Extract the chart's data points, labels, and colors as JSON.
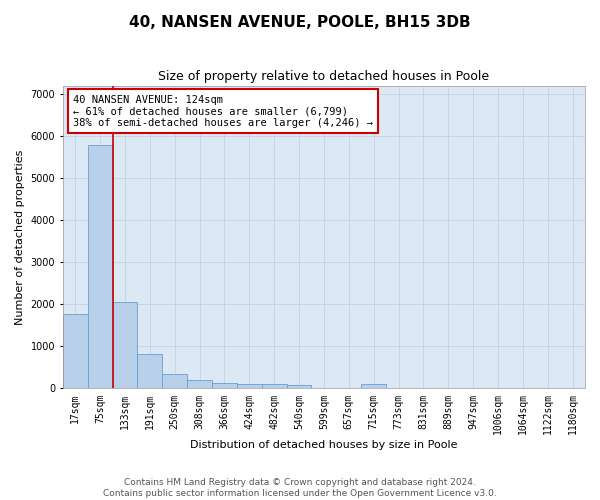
{
  "title": "40, NANSEN AVENUE, POOLE, BH15 3DB",
  "subtitle": "Size of property relative to detached houses in Poole",
  "xlabel": "Distribution of detached houses by size in Poole",
  "ylabel": "Number of detached properties",
  "bin_labels": [
    "17sqm",
    "75sqm",
    "133sqm",
    "191sqm",
    "250sqm",
    "308sqm",
    "366sqm",
    "424sqm",
    "482sqm",
    "540sqm",
    "599sqm",
    "657sqm",
    "715sqm",
    "773sqm",
    "831sqm",
    "889sqm",
    "947sqm",
    "1006sqm",
    "1064sqm",
    "1122sqm",
    "1180sqm"
  ],
  "bar_heights": [
    1780,
    5780,
    2060,
    820,
    340,
    200,
    130,
    110,
    110,
    90,
    0,
    0,
    110,
    0,
    0,
    0,
    0,
    0,
    0,
    0,
    0
  ],
  "bar_color": "#b8d0ea",
  "bar_edge_color": "#6a9fd4",
  "annotation_text": "40 NANSEN AVENUE: 124sqm\n← 61% of detached houses are smaller (6,799)\n38% of semi-detached houses are larger (4,246) →",
  "annotation_box_color": "#ffffff",
  "annotation_box_edge_color": "#cc0000",
  "vline_color": "#cc0000",
  "ylim": [
    0,
    7200
  ],
  "yticks": [
    0,
    1000,
    2000,
    3000,
    4000,
    5000,
    6000,
    7000
  ],
  "grid_color": "#c8d4e8",
  "background_color": "#dce8f4",
  "footer_text": "Contains HM Land Registry data © Crown copyright and database right 2024.\nContains public sector information licensed under the Open Government Licence v3.0.",
  "title_fontsize": 11,
  "subtitle_fontsize": 9,
  "axis_label_fontsize": 8,
  "tick_fontsize": 7,
  "annotation_fontsize": 7.5,
  "footer_fontsize": 6.5
}
